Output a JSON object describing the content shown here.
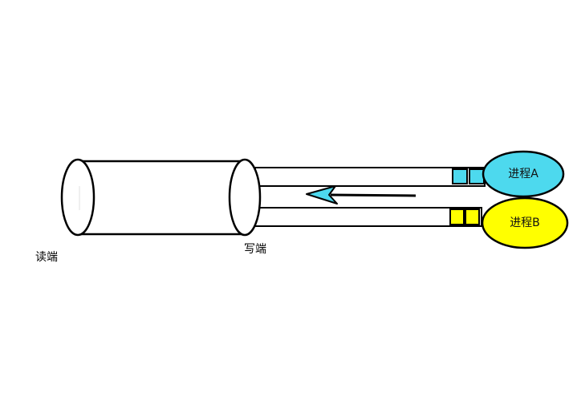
{
  "labels": {
    "read_end": "读端",
    "write_end": "写端"
  },
  "processes": [
    {
      "name": "进程A",
      "color": "#4dd9ee"
    },
    {
      "name": "进程B",
      "color": "#ffff00"
    }
  ],
  "colors": {
    "stroke": "#000000",
    "arrow_fill": "#4dd9ee"
  }
}
